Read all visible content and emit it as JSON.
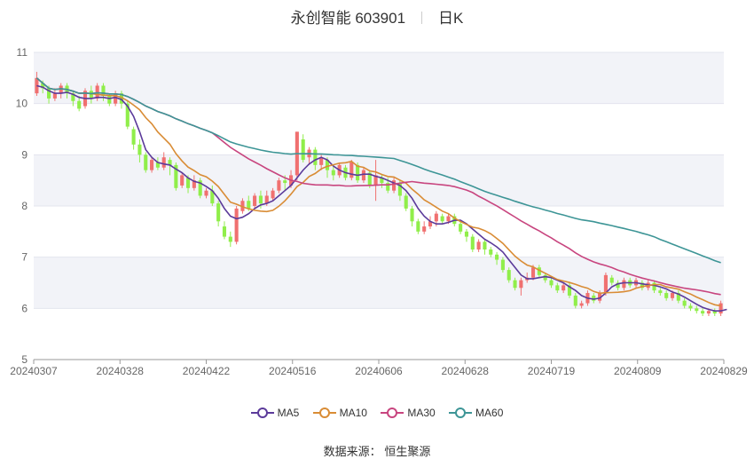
{
  "header": {
    "title": "永创智能 603901",
    "period": "日K"
  },
  "source": {
    "label": "数据来源：",
    "name": "恒生聚源"
  },
  "colors": {
    "up": "#f07070",
    "down": "#90ee4a",
    "grid_band": "#f2f3f8",
    "ma5": "#5b3a9a",
    "ma10": "#d98c35",
    "ma30": "#c8457f",
    "ma60": "#3d9596"
  },
  "chart_data": {
    "type": "candlestick",
    "ylim": [
      5,
      11
    ],
    "yticks": [
      "5",
      "6",
      "7",
      "8",
      "9",
      "10",
      "11"
    ],
    "xticks": [
      "20240307",
      "20240328",
      "20240422",
      "20240516",
      "20240606",
      "20240628",
      "20240719",
      "20240809",
      "20240829"
    ],
    "legend": [
      "MA5",
      "MA10",
      "MA30",
      "MA60"
    ],
    "candles": [
      [
        10.2,
        10.5,
        10.15,
        10.62
      ],
      [
        10.4,
        10.3,
        10.2,
        10.45
      ],
      [
        10.3,
        10.1,
        10.0,
        10.35
      ],
      [
        10.1,
        10.2,
        10.05,
        10.3
      ],
      [
        10.2,
        10.35,
        10.1,
        10.4
      ],
      [
        10.35,
        10.2,
        10.1,
        10.4
      ],
      [
        10.2,
        10.05,
        9.95,
        10.25
      ],
      [
        10.05,
        9.9,
        9.85,
        10.15
      ],
      [
        9.95,
        10.25,
        9.9,
        10.3
      ],
      [
        10.25,
        10.1,
        10.0,
        10.35
      ],
      [
        10.1,
        10.35,
        10.05,
        10.4
      ],
      [
        10.35,
        10.15,
        10.05,
        10.4
      ],
      [
        10.15,
        10.0,
        9.95,
        10.2
      ],
      [
        10.0,
        10.2,
        9.95,
        10.25
      ],
      [
        10.2,
        10.0,
        9.9,
        10.25
      ],
      [
        10.0,
        9.55,
        9.5,
        10.05
      ],
      [
        9.5,
        9.2,
        9.1,
        9.55
      ],
      [
        9.2,
        9.0,
        8.85,
        9.3
      ],
      [
        9.0,
        8.7,
        8.65,
        9.05
      ],
      [
        8.7,
        8.9,
        8.65,
        8.95
      ],
      [
        8.85,
        8.75,
        8.7,
        8.95
      ],
      [
        8.75,
        8.95,
        8.7,
        9.05
      ],
      [
        8.9,
        8.8,
        8.6,
        8.95
      ],
      [
        8.8,
        8.35,
        8.3,
        8.85
      ],
      [
        8.4,
        8.6,
        8.35,
        8.65
      ],
      [
        8.55,
        8.35,
        8.25,
        8.6
      ],
      [
        8.35,
        8.5,
        8.3,
        8.6
      ],
      [
        8.5,
        8.2,
        8.15,
        8.55
      ],
      [
        8.2,
        8.3,
        8.15,
        8.35
      ],
      [
        8.3,
        8.05,
        8.0,
        8.4
      ],
      [
        8.05,
        7.7,
        7.6,
        8.1
      ],
      [
        7.6,
        7.4,
        7.35,
        7.7
      ],
      [
        7.4,
        7.3,
        7.2,
        7.5
      ],
      [
        7.3,
        7.95,
        7.25,
        8.0
      ],
      [
        7.9,
        8.1,
        7.85,
        8.15
      ],
      [
        8.1,
        7.95,
        7.9,
        8.2
      ],
      [
        8.0,
        8.2,
        7.95,
        8.25
      ],
      [
        8.2,
        8.05,
        7.95,
        8.3
      ],
      [
        8.05,
        8.2,
        8.0,
        8.3
      ],
      [
        8.15,
        8.3,
        8.1,
        8.35
      ],
      [
        8.3,
        8.5,
        8.25,
        8.55
      ],
      [
        8.5,
        8.45,
        8.3,
        8.6
      ],
      [
        8.4,
        8.6,
        8.35,
        8.7
      ],
      [
        8.6,
        9.45,
        8.5,
        9.45
      ],
      [
        9.3,
        8.9,
        8.85,
        9.4
      ],
      [
        8.95,
        9.1,
        8.8,
        9.15
      ],
      [
        9.1,
        8.8,
        8.7,
        9.15
      ],
      [
        8.8,
        8.95,
        8.7,
        9.0
      ],
      [
        8.9,
        8.7,
        8.55,
        8.95
      ],
      [
        8.7,
        8.6,
        8.5,
        8.8
      ],
      [
        8.6,
        8.8,
        8.55,
        8.85
      ],
      [
        8.75,
        8.55,
        8.5,
        8.8
      ],
      [
        8.55,
        8.85,
        8.5,
        8.9
      ],
      [
        8.8,
        8.5,
        8.45,
        8.85
      ],
      [
        8.5,
        8.7,
        8.45,
        8.75
      ],
      [
        8.65,
        8.4,
        8.35,
        8.7
      ],
      [
        8.4,
        8.6,
        8.1,
        8.9
      ],
      [
        8.55,
        8.45,
        8.35,
        8.6
      ],
      [
        8.45,
        8.3,
        8.25,
        8.55
      ],
      [
        8.3,
        8.5,
        8.25,
        8.55
      ],
      [
        8.45,
        8.2,
        8.1,
        8.5
      ],
      [
        8.2,
        7.95,
        7.9,
        8.25
      ],
      [
        7.95,
        7.7,
        7.6,
        8.0
      ],
      [
        7.7,
        7.5,
        7.45,
        7.75
      ],
      [
        7.5,
        7.6,
        7.45,
        7.7
      ],
      [
        7.6,
        7.7,
        7.55,
        7.8
      ],
      [
        7.7,
        7.85,
        7.6,
        7.9
      ],
      [
        7.8,
        7.7,
        7.65,
        7.85
      ],
      [
        7.7,
        7.8,
        7.65,
        7.85
      ],
      [
        7.8,
        7.65,
        7.6,
        7.85
      ],
      [
        7.65,
        7.5,
        7.45,
        7.7
      ],
      [
        7.5,
        7.4,
        7.3,
        7.55
      ],
      [
        7.4,
        7.15,
        7.1,
        7.45
      ],
      [
        7.15,
        7.3,
        7.1,
        7.35
      ],
      [
        7.3,
        7.15,
        7.05,
        7.35
      ],
      [
        7.15,
        7.05,
        7.0,
        7.2
      ],
      [
        7.05,
        6.95,
        6.85,
        7.1
      ],
      [
        6.95,
        6.75,
        6.7,
        7.0
      ],
      [
        6.75,
        6.55,
        6.5,
        6.8
      ],
      [
        6.55,
        6.4,
        6.35,
        6.6
      ],
      [
        6.4,
        6.55,
        6.25,
        6.6
      ],
      [
        6.55,
        6.6,
        6.5,
        6.7
      ],
      [
        6.6,
        6.8,
        6.55,
        6.85
      ],
      [
        6.8,
        6.65,
        6.6,
        6.85
      ],
      [
        6.65,
        6.55,
        6.5,
        6.7
      ],
      [
        6.55,
        6.45,
        6.4,
        6.6
      ],
      [
        6.45,
        6.35,
        6.3,
        6.5
      ],
      [
        6.35,
        6.45,
        6.3,
        6.5
      ],
      [
        6.45,
        6.25,
        6.2,
        6.5
      ],
      [
        6.25,
        6.05,
        6.0,
        6.3
      ],
      [
        6.05,
        6.1,
        6.0,
        6.15
      ],
      [
        6.1,
        6.3,
        6.05,
        6.35
      ],
      [
        6.25,
        6.15,
        6.1,
        6.3
      ],
      [
        6.15,
        6.3,
        6.1,
        6.35
      ],
      [
        6.3,
        6.65,
        6.25,
        6.7
      ],
      [
        6.6,
        6.5,
        6.45,
        6.65
      ],
      [
        6.5,
        6.4,
        6.35,
        6.55
      ],
      [
        6.4,
        6.55,
        6.35,
        6.6
      ],
      [
        6.55,
        6.45,
        6.4,
        6.6
      ],
      [
        6.45,
        6.55,
        6.4,
        6.6
      ],
      [
        6.5,
        6.4,
        6.35,
        6.55
      ],
      [
        6.4,
        6.5,
        6.35,
        6.55
      ],
      [
        6.5,
        6.35,
        6.3,
        6.55
      ],
      [
        6.35,
        6.3,
        6.25,
        6.4
      ],
      [
        6.3,
        6.2,
        6.15,
        6.35
      ],
      [
        6.2,
        6.3,
        6.15,
        6.35
      ],
      [
        6.3,
        6.15,
        6.1,
        6.35
      ],
      [
        6.15,
        6.05,
        6.0,
        6.2
      ],
      [
        6.05,
        6.0,
        5.95,
        6.1
      ],
      [
        6.0,
        5.95,
        5.9,
        6.05
      ],
      [
        5.95,
        5.9,
        5.85,
        6.0
      ],
      [
        5.9,
        5.95,
        5.85,
        6.0
      ],
      [
        5.95,
        5.9,
        5.85,
        6.0
      ],
      [
        5.9,
        6.1,
        5.85,
        6.15
      ]
    ],
    "ma5": [
      10.35,
      10.32,
      10.25,
      10.2,
      10.2,
      10.22,
      10.18,
      10.12,
      10.1,
      10.1,
      10.12,
      10.12,
      10.1,
      10.12,
      10.08,
      9.95,
      9.75,
      9.45,
      9.1,
      8.95,
      8.85,
      8.82,
      8.8,
      8.72,
      8.65,
      8.55,
      8.48,
      8.45,
      8.38,
      8.3,
      8.15,
      7.95,
      7.8,
      7.75,
      7.78,
      7.85,
      7.95,
      8.02,
      8.05,
      8.1,
      8.2,
      8.3,
      8.4,
      8.55,
      8.7,
      8.82,
      8.9,
      8.95,
      8.9,
      8.78,
      8.7,
      8.65,
      8.62,
      8.6,
      8.62,
      8.62,
      8.58,
      8.55,
      8.5,
      8.45,
      8.4,
      8.3,
      8.15,
      7.95,
      7.8,
      7.7,
      7.65,
      7.65,
      7.68,
      7.72,
      7.72,
      7.65,
      7.55,
      7.45,
      7.35,
      7.28,
      7.2,
      7.1,
      6.95,
      6.8,
      6.65,
      6.58,
      6.58,
      6.6,
      6.62,
      6.6,
      6.55,
      6.5,
      6.42,
      6.35,
      6.25,
      6.2,
      6.18,
      6.2,
      6.3,
      6.42,
      6.48,
      6.5,
      6.5,
      6.5,
      6.48,
      6.46,
      6.45,
      6.42,
      6.38,
      6.32,
      6.28,
      6.22,
      6.15,
      6.08,
      6.02,
      5.98,
      5.95,
      5.95,
      5.98
    ]
  }
}
